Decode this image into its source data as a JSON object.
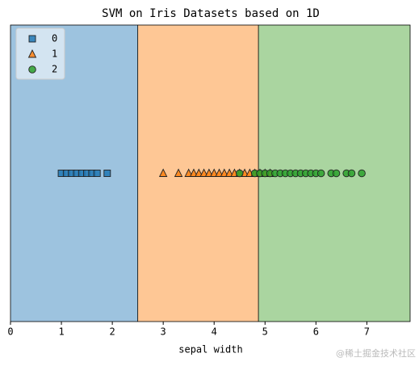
{
  "chart_data": {
    "type": "strip",
    "title": "SVM on Iris Datasets based on 1D",
    "x_label": "sepal width",
    "xlim": [
      0,
      7.85
    ],
    "xticks": [
      0,
      1,
      2,
      3,
      4,
      5,
      6,
      7
    ],
    "regions": [
      {
        "from": 0,
        "to": 2.5,
        "color": "#9dc3df"
      },
      {
        "from": 2.5,
        "to": 4.87,
        "color": "#fec795"
      },
      {
        "from": 4.87,
        "to": 7.85,
        "color": "#aad5a0"
      }
    ],
    "legend": "upper left",
    "series": [
      {
        "name": "0",
        "marker": "square",
        "color": "#1f77b4",
        "values": [
          1.0,
          1.1,
          1.2,
          1.3,
          1.4,
          1.5,
          1.6,
          1.7,
          1.9
        ]
      },
      {
        "name": "1",
        "marker": "triangle",
        "color": "#ff7f0e",
        "values": [
          3.0,
          3.3,
          3.5,
          3.6,
          3.7,
          3.8,
          3.9,
          4.0,
          4.1,
          4.2,
          4.3,
          4.4,
          4.5,
          4.6,
          4.7,
          4.8,
          4.9,
          5.0,
          5.1
        ]
      },
      {
        "name": "2",
        "marker": "circle",
        "color": "#2ca02c",
        "values": [
          4.5,
          4.8,
          4.9,
          5.0,
          5.1,
          5.2,
          5.3,
          5.4,
          5.5,
          5.6,
          5.7,
          5.8,
          5.9,
          6.0,
          6.1,
          6.3,
          6.4,
          6.6,
          6.7,
          6.9
        ]
      }
    ],
    "watermark": "@稀土掘金技术社区"
  }
}
